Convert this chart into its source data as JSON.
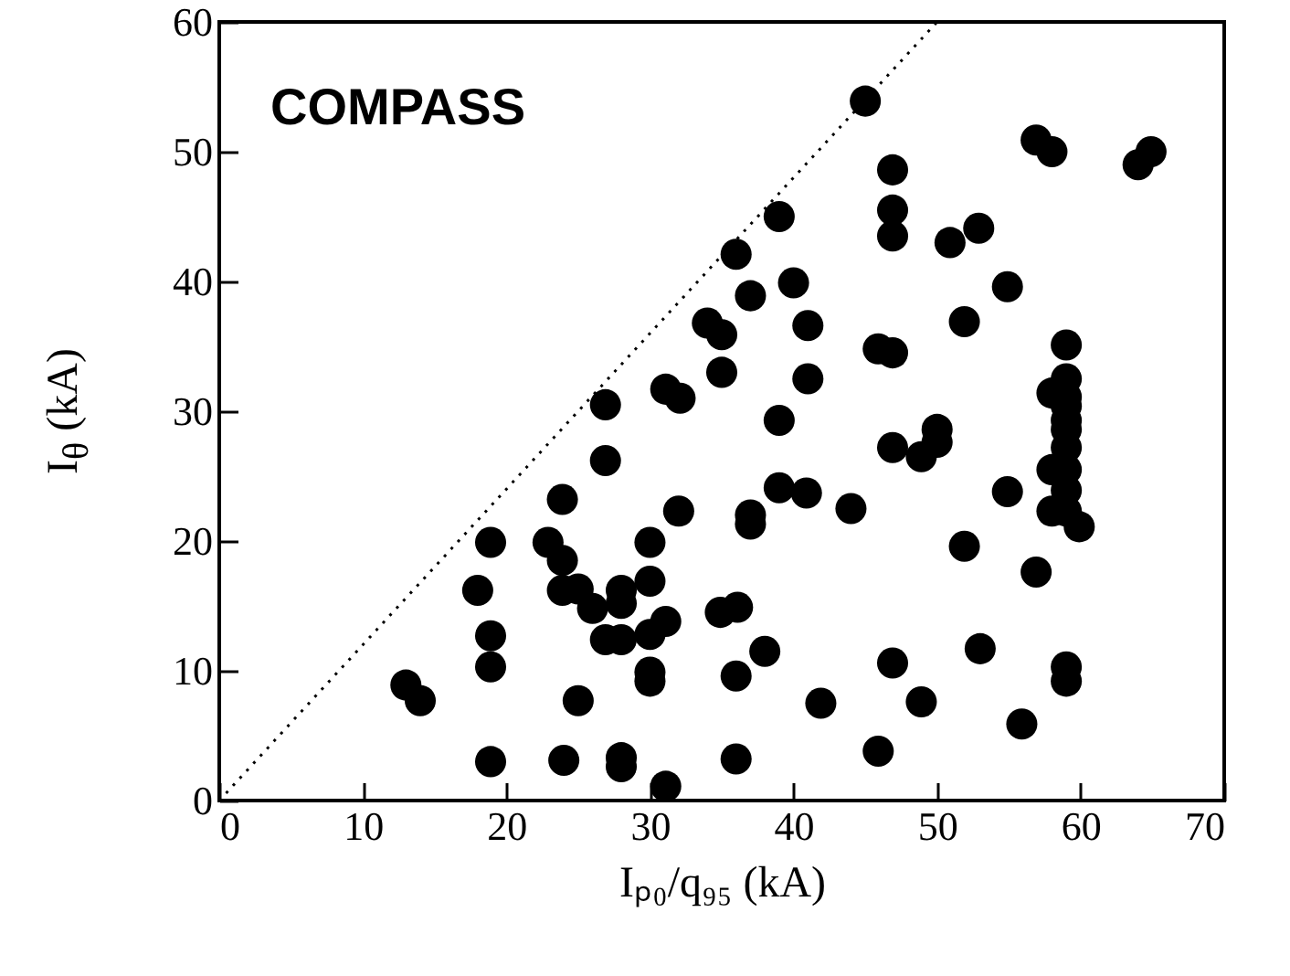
{
  "chart_data": {
    "type": "scatter",
    "xlabel": "Iₚ₀/q₉₅ (kA)",
    "ylabel": "I$_{θ}$ (kA)",
    "annotations": [
      "COMPASS"
    ],
    "xlim": [
      0,
      70
    ],
    "xticks": [
      0,
      10,
      20,
      30,
      40,
      50,
      60,
      70
    ],
    "ylim": [
      0,
      60
    ],
    "yticks": [
      0,
      10,
      20,
      30,
      40,
      50,
      60
    ],
    "grid": false,
    "marker": "circle",
    "series": [
      {
        "color": "#000000",
        "x": [
          13,
          14,
          18,
          18.9,
          18.9,
          18.9,
          18.9,
          22.9,
          23.9,
          23.9,
          25,
          26,
          28,
          28,
          26.9,
          28,
          30,
          30,
          30,
          31.1,
          30,
          30,
          32,
          26.9,
          26.9,
          23.9,
          24,
          28,
          28,
          31.1,
          25,
          34.9,
          36.1,
          36,
          36,
          38,
          41.9,
          45.9,
          46.9,
          48.9,
          53,
          55.9,
          59,
          59,
          39,
          37,
          37,
          39,
          40.9,
          44,
          46.9,
          48.9,
          50,
          50,
          51.9,
          54.9,
          56.9,
          58,
          58,
          59.9,
          45,
          46.9,
          46.9,
          46.9,
          39,
          36,
          37,
          40,
          41,
          34,
          35,
          35,
          41,
          45.9,
          46.9,
          50.9,
          52.9,
          54.9,
          51.9,
          56.9,
          58,
          64,
          64.9,
          59,
          59,
          58,
          59,
          59,
          59,
          59,
          59,
          59,
          59,
          59,
          31.1,
          32.1
        ],
        "values": [
          8.9,
          7.7,
          16.2,
          19.9,
          12.7,
          10.3,
          3,
          19.9,
          18.5,
          16.2,
          16.3,
          14.8,
          16.2,
          15.2,
          12.4,
          12.4,
          19.9,
          16.9,
          12.8,
          13.8,
          9.9,
          9.2,
          22.3,
          26.2,
          30.5,
          23.2,
          3.1,
          3.3,
          2.6,
          1.1,
          7.7,
          14.5,
          14.9,
          9.6,
          3.2,
          11.5,
          7.5,
          3.8,
          10.6,
          7.6,
          11.7,
          5.9,
          10.3,
          9.2,
          29.3,
          22,
          21.3,
          24.1,
          23.7,
          22.5,
          27.2,
          26.5,
          28.6,
          27.6,
          19.6,
          23.8,
          17.6,
          25.5,
          22.3,
          21.1,
          53.9,
          48.6,
          45.5,
          43.5,
          45,
          42.1,
          38.9,
          39.9,
          36.6,
          36.8,
          35.9,
          33,
          32.5,
          34.8,
          34.5,
          43,
          44.1,
          39.6,
          36.9,
          50.9,
          50,
          49,
          50,
          35.1,
          32.5,
          31.4,
          31.1,
          29.3,
          30.4,
          28.6,
          27.2,
          25.5,
          23.9,
          22.3,
          31.7,
          31
        ]
      },
      {
        "type": "line",
        "color": "#000000",
        "line_style": "dotted",
        "marker": "none",
        "x": [
          0,
          50
        ],
        "values": [
          0,
          60
        ]
      }
    ]
  }
}
